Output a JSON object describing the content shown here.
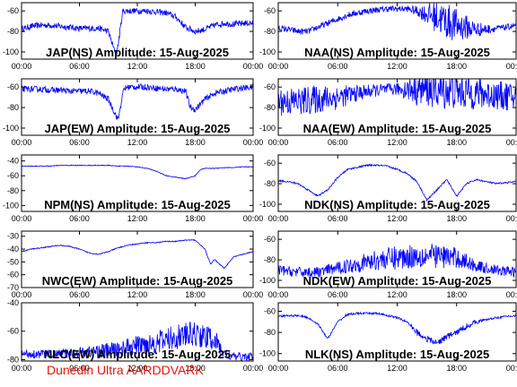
{
  "figure": {
    "footer": "Dunedin Ultra AARDDVARK",
    "trace_color": "#0000ff",
    "footer_color": "#e8140c"
  },
  "chart_data": [
    {
      "type": "line",
      "title": "JAP(NS) Amplitude: 15-Aug-2025",
      "x_ticks": [
        "00:00",
        "06:00",
        "12:00",
        "18:00",
        "00:00"
      ],
      "xlim": [
        "00:00",
        "24:00"
      ],
      "y_ticks": [
        -60,
        -80,
        -100
      ],
      "ylim": [
        -107,
        -52
      ],
      "series": [
        {
          "x_hours": [
            0,
            1,
            2,
            3,
            4,
            5,
            6,
            7,
            8,
            9,
            9.6,
            9.9,
            10.5,
            11,
            12,
            13,
            14,
            15,
            16,
            17,
            18,
            19,
            20,
            21,
            22,
            23,
            24
          ],
          "values": [
            -78,
            -75,
            -74,
            -74,
            -75,
            -76,
            -77,
            -77,
            -77,
            -80,
            -98,
            -100,
            -60,
            -60,
            -60,
            -60,
            -61,
            -62,
            -66,
            -76,
            -80,
            -78,
            -74,
            -72,
            -73,
            -72,
            -72
          ],
          "noise": [
            3,
            3,
            3,
            3,
            3,
            3,
            3,
            3,
            3,
            3,
            3,
            3,
            3,
            3,
            3,
            3,
            3,
            3,
            3,
            3,
            3,
            3,
            3,
            3,
            3,
            3,
            3
          ]
        }
      ]
    },
    {
      "type": "line",
      "title": "NAA(NS) Amplitude: 15-Aug-2025",
      "x_ticks": [
        "00:00",
        "06:00",
        "12:00",
        "18:00",
        "00:00"
      ],
      "xlim": [
        "00:00",
        "24:00"
      ],
      "y_ticks": [
        -60,
        -80,
        -100
      ],
      "ylim": [
        -107,
        -52
      ],
      "series": [
        {
          "x_hours": [
            0,
            1,
            2,
            3,
            4,
            5,
            6,
            7,
            8,
            9,
            10,
            11,
            12,
            13,
            14,
            15,
            16,
            17,
            18,
            19,
            20,
            21,
            22,
            23,
            24
          ],
          "values": [
            -77,
            -78,
            -80,
            -80,
            -76,
            -72,
            -68,
            -64,
            -62,
            -60,
            -59,
            -58,
            -58,
            -58,
            -60,
            -63,
            -66,
            -70,
            -74,
            -76,
            -78,
            -78,
            -77,
            -76,
            -74
          ],
          "noise": [
            3,
            3,
            3,
            3,
            3,
            3,
            3,
            3,
            3,
            3,
            3,
            3,
            3,
            3,
            5,
            10,
            16,
            18,
            16,
            12,
            8,
            5,
            3,
            3,
            3
          ]
        }
      ]
    },
    {
      "type": "line",
      "title": "JAP(EW) Amplitude: 15-Aug-2025",
      "x_ticks": [
        "00:00",
        "06:00",
        "12:00",
        "18:00",
        "00:00"
      ],
      "xlim": [
        "00:00",
        "24:00"
      ],
      "y_ticks": [
        -60,
        -80,
        -100
      ],
      "ylim": [
        -107,
        -52
      ],
      "series": [
        {
          "x_hours": [
            0,
            1,
            2,
            3,
            4,
            5,
            6,
            7,
            8,
            9,
            9.6,
            10,
            10.6,
            11,
            12,
            13,
            14,
            15,
            16,
            17,
            17.5,
            18,
            19,
            20,
            21,
            22,
            23,
            24
          ],
          "values": [
            -62,
            -62,
            -62,
            -63,
            -63,
            -64,
            -64,
            -64,
            -66,
            -72,
            -84,
            -92,
            -62,
            -60,
            -60,
            -60,
            -61,
            -62,
            -62,
            -64,
            -80,
            -82,
            -72,
            -66,
            -64,
            -62,
            -61,
            -60
          ],
          "noise": [
            3,
            3,
            3,
            3,
            3,
            3,
            3,
            3,
            3,
            3,
            3,
            3,
            3,
            3,
            3,
            3,
            3,
            3,
            3,
            3,
            3,
            3,
            3,
            3,
            3,
            3,
            3,
            3
          ]
        }
      ]
    },
    {
      "type": "line",
      "title": "NAA(EW) Amplitude: 15-Aug-2025",
      "x_ticks": [
        "00:00",
        "06:00",
        "12:00",
        "18:00",
        "00:00"
      ],
      "xlim": [
        "00:00",
        "24:00"
      ],
      "y_ticks": [
        -60,
        -80,
        -100
      ],
      "ylim": [
        -107,
        -52
      ],
      "series": [
        {
          "x_hours": [
            0,
            2,
            4,
            6,
            8,
            10,
            12,
            14,
            16,
            18,
            20,
            22,
            24
          ],
          "values": [
            -74,
            -74,
            -72,
            -70,
            -66,
            -63,
            -62,
            -62,
            -63,
            -64,
            -66,
            -68,
            -70
          ],
          "noise": [
            14,
            14,
            14,
            12,
            8,
            6,
            6,
            16,
            18,
            18,
            16,
            14,
            14
          ]
        }
      ]
    },
    {
      "type": "line",
      "title": "NPM(NS) Amplitude: 15-Aug-2025",
      "x_ticks": [
        "00:00",
        "06:00",
        "12:00",
        "18:00",
        "00:00"
      ],
      "xlim": [
        "00:00",
        "24:00"
      ],
      "y_ticks": [
        -40,
        -60,
        -80,
        -100
      ],
      "ylim": [
        -108,
        -32
      ],
      "series": [
        {
          "x_hours": [
            0,
            1,
            2,
            3,
            4,
            5,
            6,
            7,
            8,
            9,
            10,
            11,
            12,
            13,
            14,
            15,
            16,
            17,
            18,
            18.5,
            19,
            20,
            21,
            22,
            23,
            24
          ],
          "values": [
            -47,
            -47,
            -47,
            -47,
            -46,
            -46,
            -46,
            -46,
            -46,
            -46,
            -47,
            -47,
            -48,
            -50,
            -54,
            -60,
            -62,
            -64,
            -60,
            -52,
            -50,
            -50,
            -49,
            -49,
            -48,
            -48
          ],
          "noise": [
            0.5,
            0.5,
            0.5,
            0.5,
            0.5,
            0.5,
            0.5,
            0.5,
            0.5,
            0.5,
            0.5,
            0.5,
            0.5,
            0.5,
            0.5,
            0.5,
            0.5,
            0.5,
            0.5,
            0.5,
            0.5,
            0.5,
            0.5,
            0.5,
            0.5,
            0.5
          ]
        }
      ]
    },
    {
      "type": "line",
      "title": "NDK(NS) Amplitude: 15-Aug-2025",
      "x_ticks": [
        "00:00",
        "06:00",
        "12:00",
        "18:00",
        "00:00"
      ],
      "xlim": [
        "00:00",
        "24:00"
      ],
      "y_ticks": [
        -60,
        -80,
        -100
      ],
      "ylim": [
        -107,
        -52
      ],
      "series": [
        {
          "x_hours": [
            0,
            1,
            2,
            3,
            4,
            5,
            6,
            7,
            8,
            9,
            10,
            11,
            12,
            13,
            14,
            15,
            16,
            17,
            18,
            19,
            20,
            21,
            22,
            23,
            24
          ],
          "values": [
            -77,
            -78,
            -80,
            -86,
            -92,
            -86,
            -74,
            -66,
            -64,
            -62,
            -62,
            -63,
            -66,
            -70,
            -78,
            -96,
            -86,
            -76,
            -92,
            -80,
            -76,
            -78,
            -80,
            -79,
            -78
          ],
          "noise": [
            0.8,
            0.8,
            0.8,
            0.8,
            0.8,
            0.8,
            0.8,
            0.8,
            0.8,
            0.8,
            0.8,
            0.8,
            0.8,
            0.8,
            0.8,
            0.8,
            0.8,
            0.8,
            0.8,
            0.8,
            0.8,
            0.8,
            0.8,
            0.8,
            0.8
          ]
        }
      ]
    },
    {
      "type": "line",
      "title": "NWC(EW) Amplitude: 15-Aug-2025",
      "x_ticks": [
        "00:00",
        "06:00",
        "12:00",
        "18:00",
        "00:00"
      ],
      "xlim": [
        "00:00",
        "24:00"
      ],
      "y_ticks": [
        -30,
        -40,
        -50,
        -60,
        -70
      ],
      "ylim": [
        -70,
        -26
      ],
      "series": [
        {
          "x_hours": [
            0,
            1,
            2,
            3,
            4,
            5,
            6,
            7,
            8,
            9,
            10,
            11,
            12,
            13,
            14,
            15,
            16,
            17,
            18,
            19,
            19.6,
            20,
            21,
            22,
            23,
            24
          ],
          "values": [
            -42,
            -40,
            -39,
            -38,
            -37,
            -38,
            -40,
            -43,
            -44,
            -42,
            -39,
            -37,
            -36,
            -35,
            -35,
            -34,
            -34,
            -33,
            -33,
            -40,
            -52,
            -48,
            -55,
            -46,
            -44,
            -42
          ],
          "noise": [
            0.4,
            0.4,
            0.4,
            0.4,
            0.4,
            0.4,
            0.4,
            0.4,
            0.4,
            0.4,
            0.4,
            0.4,
            0.4,
            0.4,
            0.4,
            0.4,
            0.4,
            0.4,
            0.4,
            0.4,
            0.4,
            0.4,
            0.4,
            0.4,
            0.4,
            0.4
          ]
        }
      ]
    },
    {
      "type": "line",
      "title": "NDK(EW) Amplitude: 15-Aug-2025",
      "x_ticks": [
        "00:00",
        "06:00",
        "12:00",
        "18:00",
        "00:00"
      ],
      "xlim": [
        "00:00",
        "24:00"
      ],
      "y_ticks": [
        -60,
        -80,
        -100
      ],
      "ylim": [
        -107,
        -52
      ],
      "series": [
        {
          "x_hours": [
            0,
            2,
            4,
            6,
            8,
            10,
            12,
            14,
            16,
            18,
            20,
            22,
            24
          ],
          "values": [
            -90,
            -92,
            -92,
            -88,
            -84,
            -80,
            -78,
            -76,
            -76,
            -78,
            -86,
            -90,
            -92
          ],
          "noise": [
            5,
            5,
            5,
            6,
            8,
            10,
            12,
            12,
            12,
            10,
            6,
            5,
            5
          ]
        }
      ]
    },
    {
      "type": "line",
      "title": "NLC(EW) Amplitude: 15-Aug-2025",
      "x_ticks": [
        "00:00",
        "06:00",
        "12:00",
        "18:00",
        "00:00"
      ],
      "xlim": [
        "00:00",
        "24:00"
      ],
      "y_ticks": [
        -40,
        -60,
        -80
      ],
      "ylim": [
        -81,
        -40
      ],
      "series": [
        {
          "x_hours": [
            0,
            2,
            4,
            6,
            8,
            10,
            12,
            14,
            16,
            18,
            20,
            21,
            22,
            24
          ],
          "values": [
            -76,
            -76,
            -76,
            -75,
            -74,
            -73,
            -70,
            -68,
            -64,
            -62,
            -66,
            -76,
            -78,
            -78
          ],
          "noise": [
            3,
            3,
            3,
            4,
            5,
            6,
            7,
            8,
            9,
            9,
            8,
            4,
            3,
            3
          ]
        }
      ]
    },
    {
      "type": "line",
      "title": "NLK(NS) Amplitude: 15-Aug-2025",
      "x_ticks": [
        "00:00",
        "06:00",
        "12:00",
        "18:00",
        "00:00"
      ],
      "xlim": [
        "00:00",
        "24:00"
      ],
      "y_ticks": [
        -60,
        -80,
        -100
      ],
      "ylim": [
        -107,
        -52
      ],
      "series": [
        {
          "x_hours": [
            0,
            1,
            2,
            3,
            4,
            5,
            6,
            7,
            8,
            9,
            10,
            11,
            12,
            13,
            14,
            15,
            16,
            17,
            18,
            19,
            20,
            21,
            22,
            23,
            24
          ],
          "values": [
            -65,
            -64,
            -64,
            -66,
            -72,
            -86,
            -70,
            -63,
            -62,
            -62,
            -62,
            -64,
            -66,
            -70,
            -80,
            -86,
            -90,
            -84,
            -80,
            -74,
            -70,
            -68,
            -66,
            -65,
            -64
          ],
          "noise": [
            1,
            1,
            1,
            1,
            1,
            1,
            1,
            1,
            1,
            1,
            1,
            1,
            1,
            1,
            3,
            3,
            3,
            3,
            3,
            3,
            2,
            1,
            1,
            1,
            1
          ]
        }
      ]
    }
  ]
}
